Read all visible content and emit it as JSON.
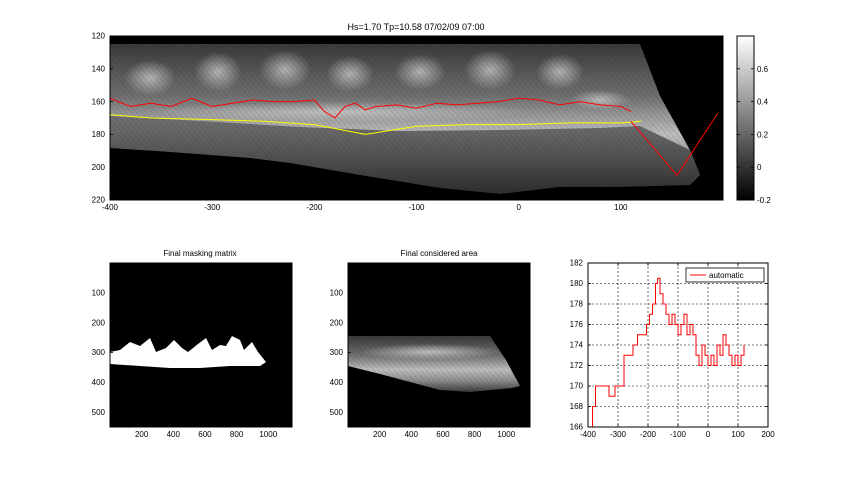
{
  "chart_data": [
    {
      "id": "main",
      "type": "heatmap",
      "title": "Hs=1.70 Tp=10.58 07/02/09 07:00",
      "xlim": [
        -400,
        200
      ],
      "ylim": [
        120,
        220
      ],
      "y_reversed": true,
      "xticks": [
        -400,
        -300,
        -200,
        -100,
        0,
        100
      ],
      "yticks": [
        120,
        140,
        160,
        180,
        200,
        220
      ],
      "colormap": "gray",
      "colorbar": {
        "ticks": [
          0.6,
          0.4,
          0.2,
          0,
          -0.2
        ],
        "range": [
          -0.2,
          0.8
        ]
      },
      "series": [
        {
          "color": "#ff0000",
          "x": [
            -400,
            -380,
            -360,
            -340,
            -320,
            -300,
            -280,
            -260,
            -240,
            -220,
            -200,
            -190,
            -180,
            -170,
            -160,
            -150,
            -140,
            -120,
            -100,
            -80,
            -60,
            -40,
            -20,
            0,
            20,
            40,
            60,
            80,
            100,
            110
          ],
          "y": [
            158,
            163,
            161,
            163,
            158,
            163,
            161,
            159,
            160,
            160,
            159,
            166,
            170,
            163,
            161,
            165,
            163,
            162,
            164,
            161,
            162,
            161,
            160,
            158,
            159,
            162,
            160,
            162,
            163,
            166
          ]
        },
        {
          "color": "#ffff00",
          "x": [
            -400,
            -360,
            -300,
            -250,
            -200,
            -150,
            -100,
            -50,
            0,
            50,
            100,
            120
          ],
          "y": [
            168,
            170,
            171,
            172,
            174,
            180,
            175,
            174,
            174,
            173,
            173,
            172
          ]
        },
        {
          "color": "#ff0000",
          "x": [
            110,
            155,
            195
          ],
          "y": [
            172,
            205,
            167
          ]
        }
      ]
    },
    {
      "id": "mask",
      "type": "heatmap",
      "title": "Final masking matrix",
      "xticks": [
        200,
        400,
        600,
        800,
        1000
      ],
      "yticks": [
        100,
        200,
        300,
        400,
        500
      ],
      "xlim": [
        0,
        1150
      ],
      "ylim": [
        0,
        550
      ],
      "y_reversed": true,
      "colormap": "binary"
    },
    {
      "id": "area",
      "type": "heatmap",
      "title": "Final considered area",
      "xticks": [
        200,
        400,
        600,
        800,
        1000
      ],
      "yticks": [
        100,
        200,
        300,
        400,
        500
      ],
      "xlim": [
        0,
        1150
      ],
      "ylim": [
        0,
        550
      ],
      "y_reversed": true,
      "colormap": "gray"
    },
    {
      "id": "profile",
      "type": "line",
      "xlim": [
        -400,
        200
      ],
      "ylim": [
        166,
        182
      ],
      "xticks": [
        -400,
        -300,
        -200,
        -100,
        0,
        100,
        200
      ],
      "yticks": [
        166,
        168,
        170,
        172,
        174,
        176,
        178,
        180,
        182
      ],
      "grid": true,
      "legend": "top-right",
      "series": [
        {
          "name": "automatic",
          "color": "#ff0000",
          "x": [
            -400,
            -385,
            -375,
            -360,
            -345,
            -330,
            -310,
            -290,
            -280,
            -260,
            -250,
            -235,
            -220,
            -205,
            -195,
            -185,
            -175,
            -168,
            -160,
            -150,
            -140,
            -130,
            -120,
            -110,
            -100,
            -90,
            -80,
            -70,
            -60,
            -50,
            -40,
            -30,
            -20,
            -10,
            0,
            10,
            20,
            30,
            40,
            50,
            60,
            70,
            80,
            90,
            100,
            110,
            120
          ],
          "y": [
            166,
            168,
            170,
            170,
            170,
            169,
            170,
            170,
            173,
            173,
            174,
            175,
            175,
            176,
            177,
            178,
            180,
            180.5,
            179,
            178,
            177,
            176,
            177,
            176,
            175,
            176,
            177,
            175,
            176,
            175,
            173,
            172,
            174,
            173,
            172,
            173,
            172,
            174,
            173,
            175,
            174,
            173,
            172,
            173,
            172,
            173,
            174
          ]
        }
      ]
    }
  ]
}
